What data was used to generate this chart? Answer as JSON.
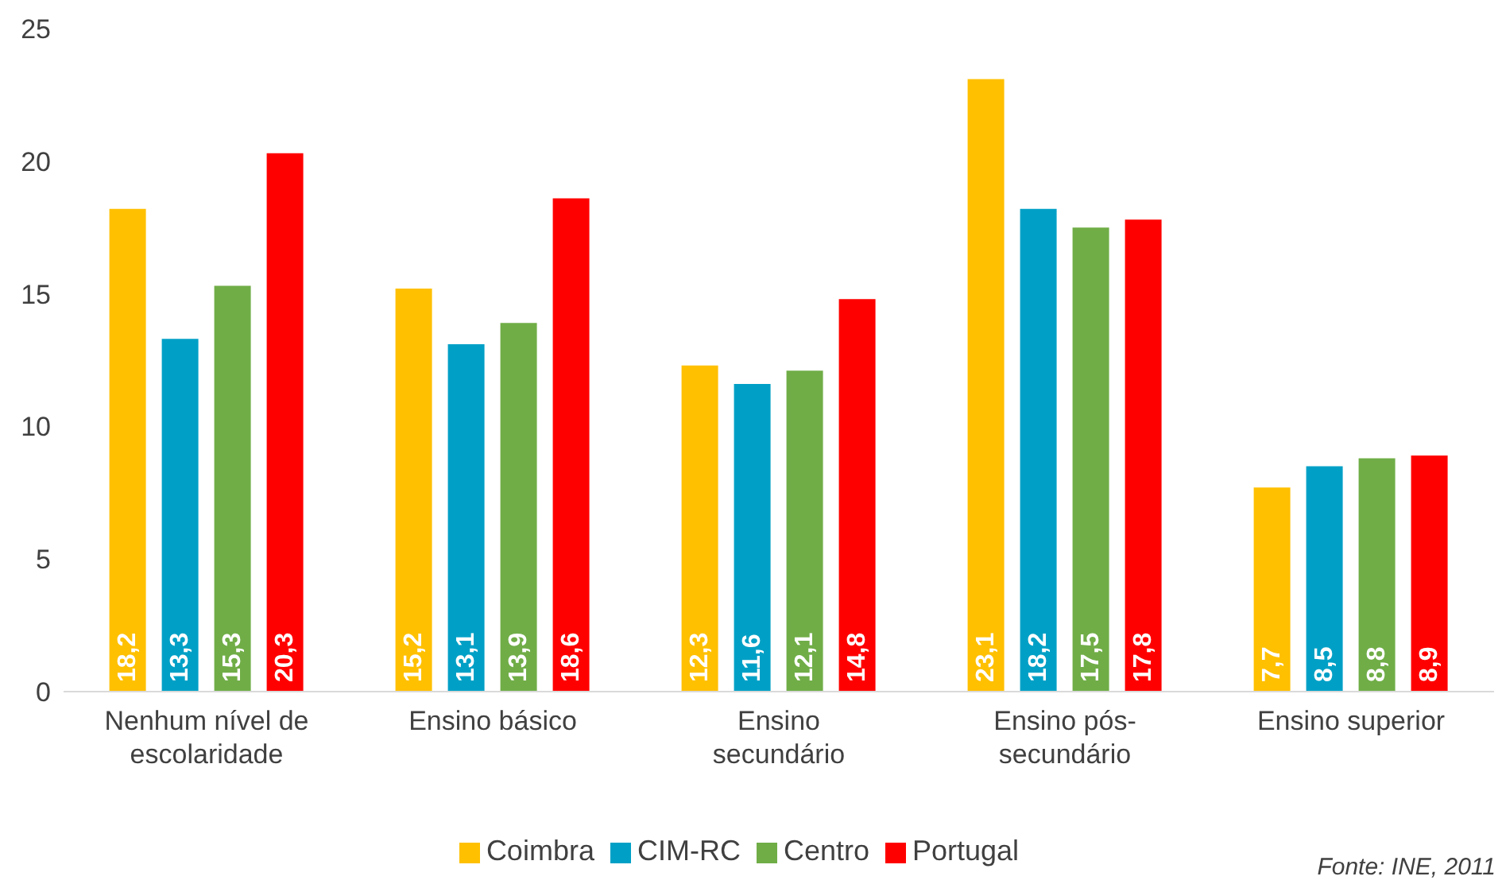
{
  "chart_data": {
    "type": "bar",
    "categories": [
      "Nenhum nível de escolaridade",
      "Ensino básico",
      "Ensino secundário",
      "Ensino pós-secundário",
      "Ensino superior"
    ],
    "series": [
      {
        "name": "Coimbra",
        "color": "#ffc000",
        "values": [
          18.2,
          15.2,
          12.3,
          23.1,
          7.7
        ],
        "value_labels": [
          "18,2",
          "15,2",
          "12,3",
          "23,1",
          "7,7"
        ]
      },
      {
        "name": "CIM-RC",
        "color": "#00a0c6",
        "values": [
          13.3,
          13.1,
          11.6,
          18.2,
          8.5
        ],
        "value_labels": [
          "13,3",
          "13,1",
          "11,6",
          "18,2",
          "8,5"
        ]
      },
      {
        "name": "Centro",
        "color": "#70ad47",
        "values": [
          15.3,
          13.9,
          12.1,
          17.5,
          8.8
        ],
        "value_labels": [
          "15,3",
          "13,9",
          "12,1",
          "17,5",
          "8,8"
        ]
      },
      {
        "name": "Portugal",
        "color": "#ff0000",
        "values": [
          20.3,
          18.6,
          14.8,
          17.8,
          8.9
        ],
        "value_labels": [
          "20,3",
          "18,6",
          "14,8",
          "17,8",
          "8,9"
        ]
      }
    ],
    "ylim": [
      0,
      25
    ],
    "yticks": [
      0,
      5,
      10,
      15,
      20,
      25
    ],
    "grid": false,
    "legend": "bottom",
    "annotations": [
      "Fonte: INE, 2011"
    ]
  }
}
